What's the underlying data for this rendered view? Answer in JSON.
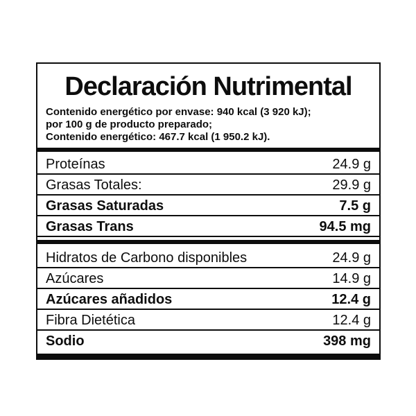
{
  "label": {
    "title": "Declaración Nutrimental",
    "energy_lines": [
      "Contenido energético por envase: 940 kcal (3 920 kJ);",
      "por 100 g de producto preparado;",
      "Contenido energético: 467.7 kcal (1 950.2 kJ)."
    ],
    "sections": [
      {
        "name": "proteins-and-fats",
        "rows": [
          {
            "name": "Proteínas",
            "value": "24.9 g",
            "bold": false
          },
          {
            "name": "Grasas Totales:",
            "value": "29.9 g",
            "bold": false
          },
          {
            "name": "Grasas Saturadas",
            "value": "7.5 g",
            "bold": true
          },
          {
            "name": "Grasas Trans",
            "value": "94.5 mg",
            "bold": true
          }
        ]
      },
      {
        "name": "carbohydrates-fiber-sodium",
        "rows": [
          {
            "name": "Hidratos de Carbono disponibles",
            "value": "24.9 g",
            "bold": false
          },
          {
            "name": "Azúcares",
            "value": "14.9 g",
            "bold": false
          },
          {
            "name": "Azúcares añadidos",
            "value": "12.4 g",
            "bold": true
          },
          {
            "name": "Fibra Dietética",
            "value": "12.4 g",
            "bold": false
          },
          {
            "name": "Sodio",
            "value": "398 mg",
            "bold": true
          }
        ]
      }
    ],
    "colors": {
      "text": "#0d0d0d",
      "background": "#ffffff",
      "border": "#0d0d0d"
    }
  }
}
